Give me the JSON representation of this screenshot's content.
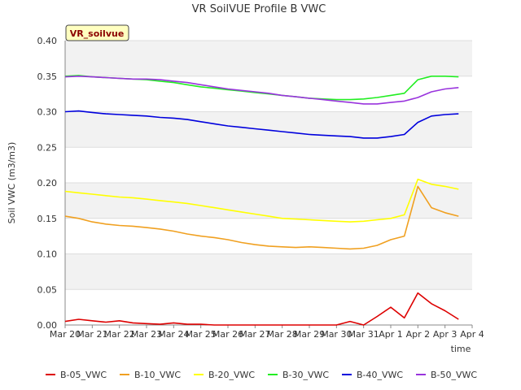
{
  "chart_data": {
    "type": "line",
    "title": "VR SoilVUE Profile B VWC",
    "badge": "VR_soilvue",
    "xlabel": "time",
    "ylabel": "Soil VWC (m3/m3)",
    "xlim": [
      "Mar 20",
      "Apr 4"
    ],
    "ylim": [
      0,
      0.4
    ],
    "x_ticks": [
      "Mar 20",
      "Mar 21",
      "Mar 22",
      "Mar 23",
      "Mar 24",
      "Mar 25",
      "Mar 26",
      "Mar 27",
      "Mar 28",
      "Mar 29",
      "Mar 30",
      "Mar 31",
      "Apr 1",
      "Apr 2",
      "Apr 3",
      "Apr 4"
    ],
    "y_ticks": [
      "0.00",
      "0.05",
      "0.10",
      "0.15",
      "0.20",
      "0.25",
      "0.30",
      "0.35",
      "0.40"
    ],
    "grid": true,
    "legend_position": "bottom",
    "x": [
      "Mar 20",
      "Mar 20 12:00",
      "Mar 21",
      "Mar 21 12:00",
      "Mar 22",
      "Mar 22 12:00",
      "Mar 23",
      "Mar 23 12:00",
      "Mar 24",
      "Mar 24 12:00",
      "Mar 25",
      "Mar 25 12:00",
      "Mar 26",
      "Mar 26 12:00",
      "Mar 27",
      "Mar 27 12:00",
      "Mar 28",
      "Mar 28 12:00",
      "Mar 29",
      "Mar 29 12:00",
      "Mar 30",
      "Mar 30 12:00",
      "Mar 31",
      "Mar 31 12:00",
      "Apr 1",
      "Apr 1 12:00",
      "Apr 2",
      "Apr 2 12:00",
      "Apr 3",
      "Apr 3 12:00"
    ],
    "series": [
      {
        "name": "B-05_VWC",
        "color": "#dd0000",
        "values": [
          0.005,
          0.008,
          0.006,
          0.004,
          0.006,
          0.003,
          0.002,
          0.001,
          0.003,
          0.001,
          0.001,
          0.0,
          0.0,
          0.0,
          0.0,
          0.0,
          0.0,
          0.0,
          0.0,
          0.0,
          0.0,
          0.005,
          0.0,
          0.012,
          0.025,
          0.01,
          0.045,
          0.03,
          0.02,
          0.008
        ]
      },
      {
        "name": "B-10_VWC",
        "color": "#f0a020",
        "values": [
          0.153,
          0.15,
          0.145,
          0.142,
          0.14,
          0.139,
          0.137,
          0.135,
          0.132,
          0.128,
          0.125,
          0.123,
          0.12,
          0.116,
          0.113,
          0.111,
          0.11,
          0.109,
          0.11,
          0.109,
          0.108,
          0.107,
          0.108,
          0.112,
          0.12,
          0.125,
          0.195,
          0.165,
          0.158,
          0.153
        ]
      },
      {
        "name": "B-20_VWC",
        "color": "#ffff00",
        "values": [
          0.188,
          0.186,
          0.184,
          0.182,
          0.18,
          0.179,
          0.177,
          0.175,
          0.173,
          0.171,
          0.168,
          0.165,
          0.162,
          0.159,
          0.156,
          0.153,
          0.15,
          0.149,
          0.148,
          0.147,
          0.146,
          0.145,
          0.146,
          0.148,
          0.15,
          0.155,
          0.205,
          0.198,
          0.195,
          0.191
        ]
      },
      {
        "name": "B-30_VWC",
        "color": "#22ee22",
        "values": [
          0.35,
          0.351,
          0.349,
          0.348,
          0.347,
          0.346,
          0.345,
          0.343,
          0.341,
          0.338,
          0.335,
          0.333,
          0.331,
          0.329,
          0.327,
          0.325,
          0.323,
          0.321,
          0.319,
          0.318,
          0.317,
          0.317,
          0.318,
          0.32,
          0.323,
          0.326,
          0.345,
          0.35,
          0.35,
          0.349
        ]
      },
      {
        "name": "B-40_VWC",
        "color": "#0000dd",
        "values": [
          0.3,
          0.301,
          0.299,
          0.297,
          0.296,
          0.295,
          0.294,
          0.292,
          0.291,
          0.289,
          0.286,
          0.283,
          0.28,
          0.278,
          0.276,
          0.274,
          0.272,
          0.27,
          0.268,
          0.267,
          0.266,
          0.265,
          0.263,
          0.263,
          0.265,
          0.268,
          0.285,
          0.294,
          0.296,
          0.297
        ]
      },
      {
        "name": "B-50_VWC",
        "color": "#9933dd",
        "values": [
          0.349,
          0.35,
          0.349,
          0.348,
          0.347,
          0.346,
          0.346,
          0.345,
          0.343,
          0.341,
          0.338,
          0.335,
          0.332,
          0.33,
          0.328,
          0.326,
          0.323,
          0.321,
          0.319,
          0.317,
          0.315,
          0.313,
          0.311,
          0.311,
          0.313,
          0.315,
          0.32,
          0.328,
          0.332,
          0.334
        ]
      }
    ]
  }
}
